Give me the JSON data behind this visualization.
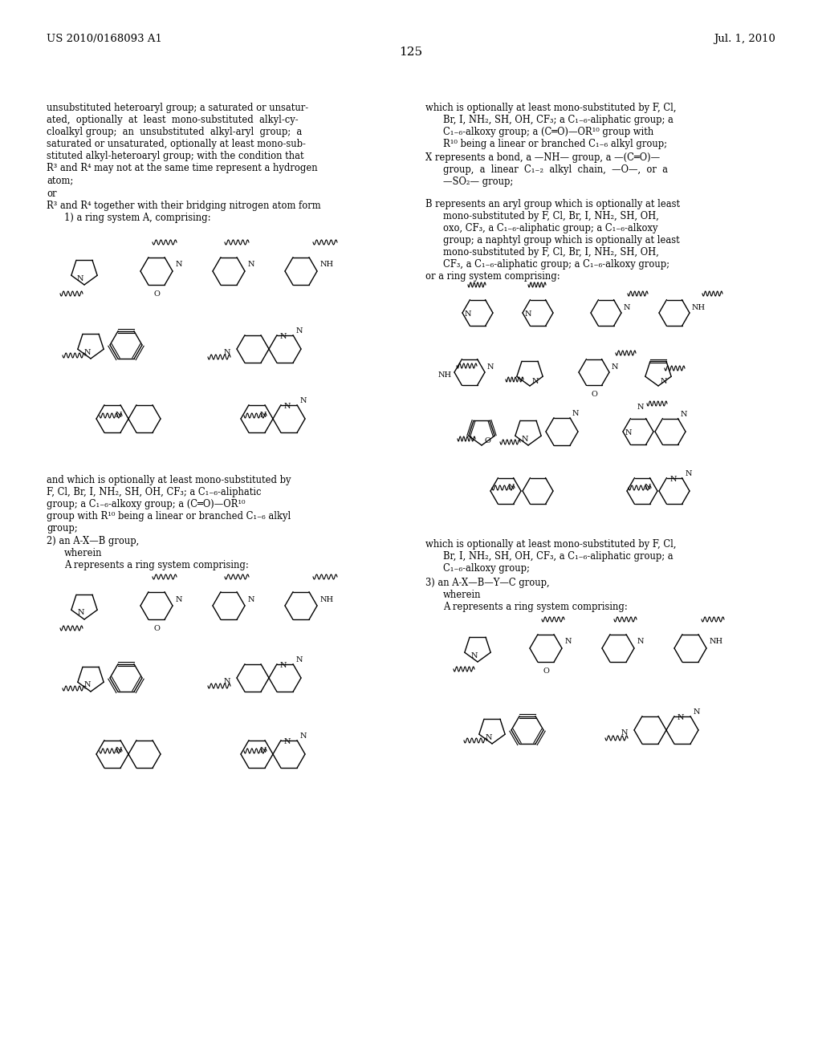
{
  "bg": "#ffffff",
  "header_left": "US 2010/0168093 A1",
  "header_right": "Jul. 1, 2010",
  "page_num": "125"
}
